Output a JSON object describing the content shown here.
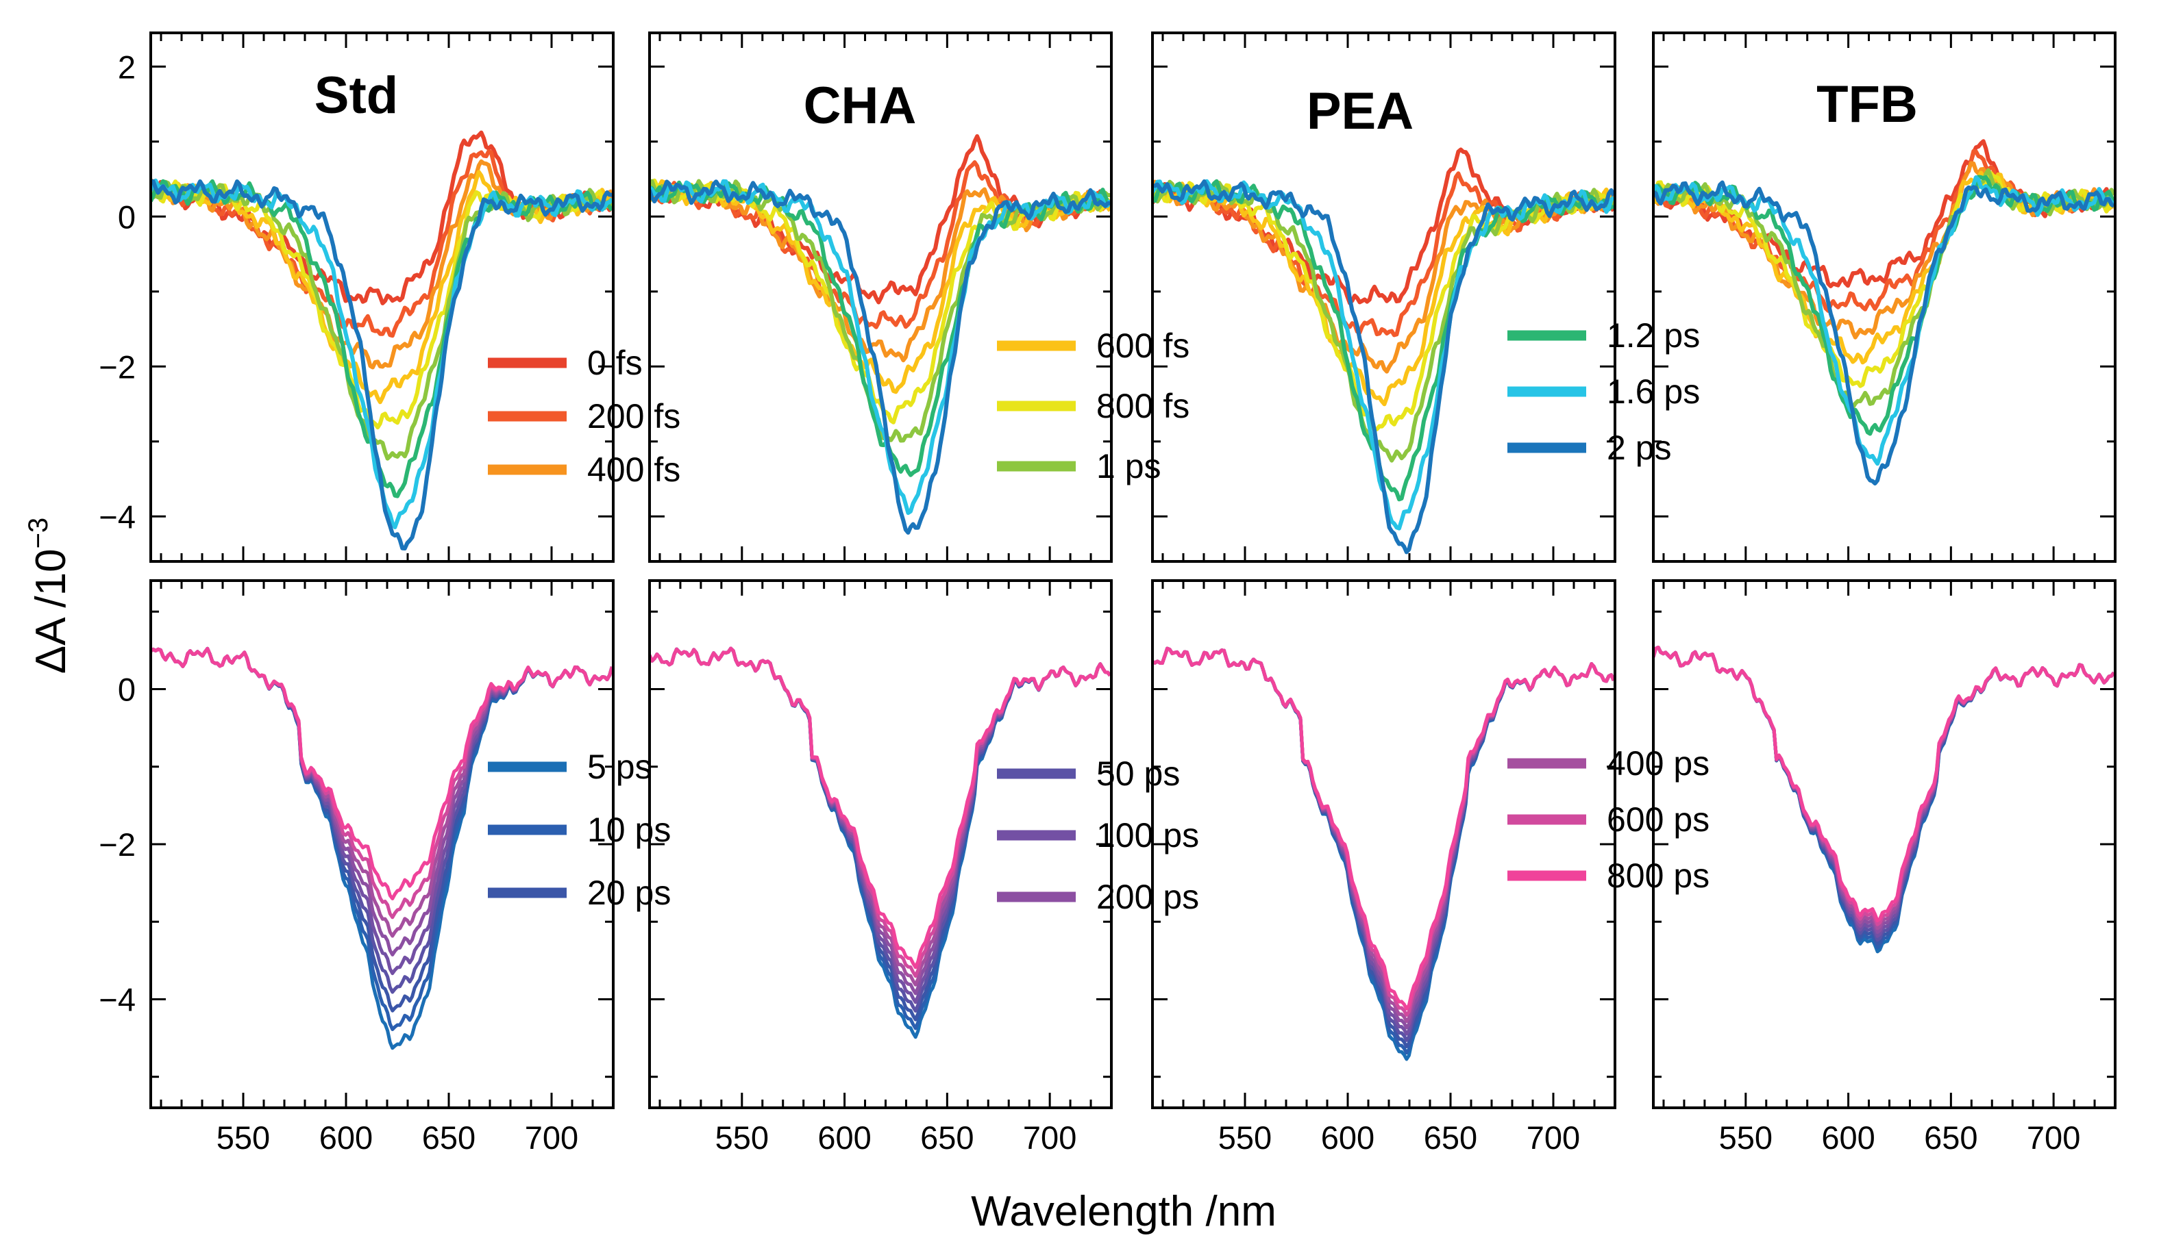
{
  "chart_data": {
    "type": "line",
    "xlabel": "Wavelength /nm",
    "ylabel": "ΔA /10",
    "ylabel_exponent": "−3",
    "xlim": [
      505,
      730
    ],
    "xticks": [
      550,
      600,
      650,
      700
    ],
    "xtick_labels": [
      "550",
      "600",
      "650",
      "700"
    ],
    "top_row": {
      "ylim": [
        -4.6,
        2.45
      ],
      "yticks": [
        2,
        0,
        -2,
        -4
      ],
      "ytick_labels": [
        "2",
        "0",
        "−2",
        "−4"
      ]
    },
    "bottom_row": {
      "ylim": [
        -5.4,
        1.4
      ],
      "yticks": [
        0,
        -2,
        -4
      ],
      "ytick_labels": [
        "0",
        "−2",
        "−4"
      ]
    },
    "grid": false,
    "panels": [
      {
        "title": "Std",
        "top": {
          "dip_center": 628,
          "min_depth": 4.45,
          "peak_center": 662,
          "max_peak": 1.5
        },
        "bottom": {
          "dip_center": 628,
          "depth_start": 4.5,
          "depth_end": 2.5
        }
      },
      {
        "title": "CHA",
        "top": {
          "dip_center": 634,
          "min_depth": 4.2,
          "peak_center": 662,
          "max_peak": 1.35
        },
        "bottom": {
          "dip_center": 634,
          "depth_start": 4.25,
          "depth_end": 3.35
        }
      },
      {
        "title": "PEA",
        "top": {
          "dip_center": 628,
          "min_depth": 4.5,
          "peak_center": 654,
          "max_peak": 1.3
        },
        "bottom": {
          "dip_center": 628,
          "depth_start": 4.55,
          "depth_end": 3.9
        }
      },
      {
        "title": "TFB",
        "top": {
          "dip_center": 614,
          "min_depth": 3.5,
          "peak_center": 662,
          "max_peak": 0.95
        },
        "bottom": {
          "dip_center": 614,
          "depth_start": 3.25,
          "depth_end": 2.85
        }
      }
    ],
    "series_top": [
      {
        "name": "0 fs",
        "color": "#e8432c"
      },
      {
        "name": "200 fs",
        "color": "#f2592b"
      },
      {
        "name": "400 fs",
        "color": "#f7931e"
      },
      {
        "name": "600 fs",
        "color": "#fbc217"
      },
      {
        "name": "800 fs",
        "color": "#e8e41a"
      },
      {
        "name": "1 ps",
        "color": "#8dc63f"
      },
      {
        "name": "1.2 ps",
        "color": "#2bb673"
      },
      {
        "name": "1.6 ps",
        "color": "#27c4e6"
      },
      {
        "name": "2 ps",
        "color": "#1b75bb"
      }
    ],
    "series_bottom": [
      {
        "name": "5 ps",
        "color": "#1b6fb5"
      },
      {
        "name": "10 ps",
        "color": "#2b5fb0"
      },
      {
        "name": "20 ps",
        "color": "#3b56a8"
      },
      {
        "name": "50 ps",
        "color": "#5a52a6"
      },
      {
        "name": "100 ps",
        "color": "#7350a4"
      },
      {
        "name": "200 ps",
        "color": "#8c4fa2"
      },
      {
        "name": "400 ps",
        "color": "#a54f9f"
      },
      {
        "name": "600 ps",
        "color": "#d14a9d"
      },
      {
        "name": "800 ps",
        "color": "#f0439a"
      }
    ]
  }
}
